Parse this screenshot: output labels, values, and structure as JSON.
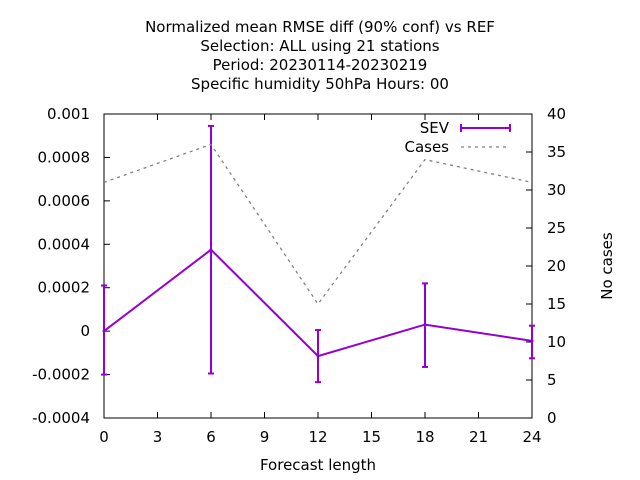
{
  "chart_data": {
    "type": "line",
    "title_lines": [
      "Normalized mean RMSE diff (90% conf) vs REF",
      "Selection: ALL using    21 stations",
      "Period: 20230114-20230219",
      "Specific humidity 50hPa   Hours:  00"
    ],
    "xlabel": "Forecast length",
    "ylabel": "",
    "y2label": "No cases",
    "xlim": [
      0,
      24
    ],
    "ylim": [
      -0.0004,
      0.001
    ],
    "y2lim": [
      0,
      40
    ],
    "x_ticks": [
      "0",
      "3",
      "6",
      "9",
      "12",
      "15",
      "18",
      "21",
      "24"
    ],
    "y_ticks": [
      "-0.0004",
      "-0.0002",
      "0",
      "0.0002",
      "0.0004",
      "0.0006",
      "0.0008",
      "0.001"
    ],
    "y2_ticks": [
      "0",
      "5",
      "10",
      "15",
      "20",
      "25",
      "30",
      "35",
      "40"
    ],
    "grid": false,
    "legend_position": "top-right",
    "series": [
      {
        "name": "SEV",
        "axis": "y",
        "color": "#9400d3",
        "style": "solid-errorbars",
        "x": [
          0,
          6,
          12,
          18,
          24
        ],
        "y": [
          0.0,
          0.000375,
          -0.000115,
          3e-05,
          -4.5e-05
        ],
        "err_low": [
          -0.0002,
          -0.000195,
          -0.000235,
          -0.000165,
          -0.000125
        ],
        "err_high": [
          0.00021,
          0.000945,
          5e-06,
          0.00022,
          2.5e-05
        ]
      },
      {
        "name": "Cases",
        "axis": "y2",
        "color": "#808080",
        "style": "dashed",
        "x": [
          0,
          6,
          12,
          18,
          24
        ],
        "y": [
          31,
          36,
          15,
          34,
          31
        ]
      }
    ]
  }
}
